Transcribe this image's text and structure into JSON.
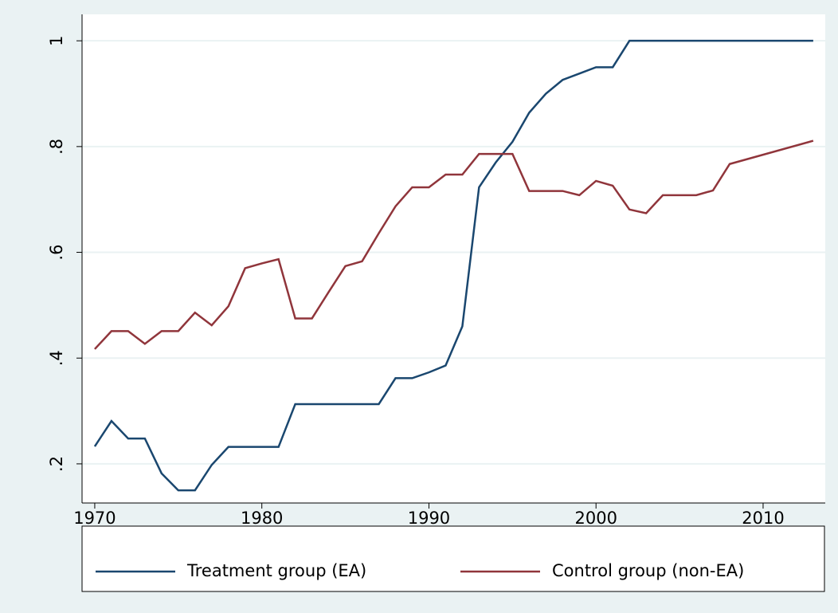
{
  "chart_data": {
    "type": "line",
    "xlim": [
      1969.24,
      2013.72
    ],
    "xticks": [
      1970,
      1980,
      1990,
      2000,
      2010
    ],
    "ylim": [
      0.126,
      1.05
    ],
    "yticks": [
      {
        "value": 0.2,
        "label": ".2"
      },
      {
        "value": 0.4,
        "label": ".4"
      },
      {
        "value": 0.6,
        "label": ".6"
      },
      {
        "value": 0.8,
        "label": ".8"
      },
      1
    ],
    "grid": true,
    "legend": "bottom",
    "series": [
      {
        "name": "Treatment group (EA)",
        "color": "#1a476f",
        "x": [
          1970,
          1971,
          1972,
          1973,
          1974,
          1975,
          1976,
          1977,
          1978,
          1979,
          1980,
          1981,
          1982,
          1983,
          1984,
          1985,
          1986,
          1987,
          1988,
          1989,
          1990,
          1991,
          1992,
          1993,
          1994,
          1995,
          1996,
          1997,
          1998,
          1999,
          2000,
          2001,
          2002,
          2003,
          2004,
          2005,
          2006,
          2007,
          2008,
          2009,
          2010,
          2011,
          2012,
          2013
        ],
        "values": [
          0.233,
          0.281,
          0.248,
          0.248,
          0.182,
          0.15,
          0.15,
          0.198,
          0.232,
          0.232,
          0.232,
          0.232,
          0.313,
          0.313,
          0.313,
          0.313,
          0.313,
          0.313,
          0.362,
          0.362,
          0.373,
          0.386,
          0.46,
          0.723,
          0.77,
          0.809,
          0.864,
          0.9,
          0.926,
          0.938,
          0.95,
          0.95,
          1,
          1,
          1,
          1,
          1,
          1,
          1,
          1,
          1,
          1,
          1,
          1
        ]
      },
      {
        "name": "Control group (non-EA)",
        "color": "#90353b",
        "x": [
          1970,
          1971,
          1972,
          1973,
          1974,
          1975,
          1976,
          1977,
          1978,
          1979,
          1980,
          1981,
          1982,
          1983,
          1984,
          1985,
          1986,
          1987,
          1988,
          1989,
          1990,
          1991,
          1992,
          1993,
          1994,
          1995,
          1996,
          1997,
          1998,
          1999,
          2000,
          2001,
          2002,
          2003,
          2004,
          2005,
          2006,
          2007,
          2008,
          2013
        ],
        "values": [
          0.417,
          0.451,
          0.451,
          0.427,
          0.451,
          0.451,
          0.486,
          0.462,
          0.498,
          0.57,
          0.579,
          0.587,
          0.475,
          0.475,
          0.525,
          0.574,
          0.583,
          0.636,
          0.687,
          0.723,
          0.723,
          0.747,
          0.747,
          0.786,
          0.786,
          0.786,
          0.716,
          0.716,
          0.716,
          0.708,
          0.735,
          0.726,
          0.681,
          0.674,
          0.708,
          0.708,
          0.708,
          0.717,
          0.767,
          0.811
        ]
      }
    ]
  }
}
